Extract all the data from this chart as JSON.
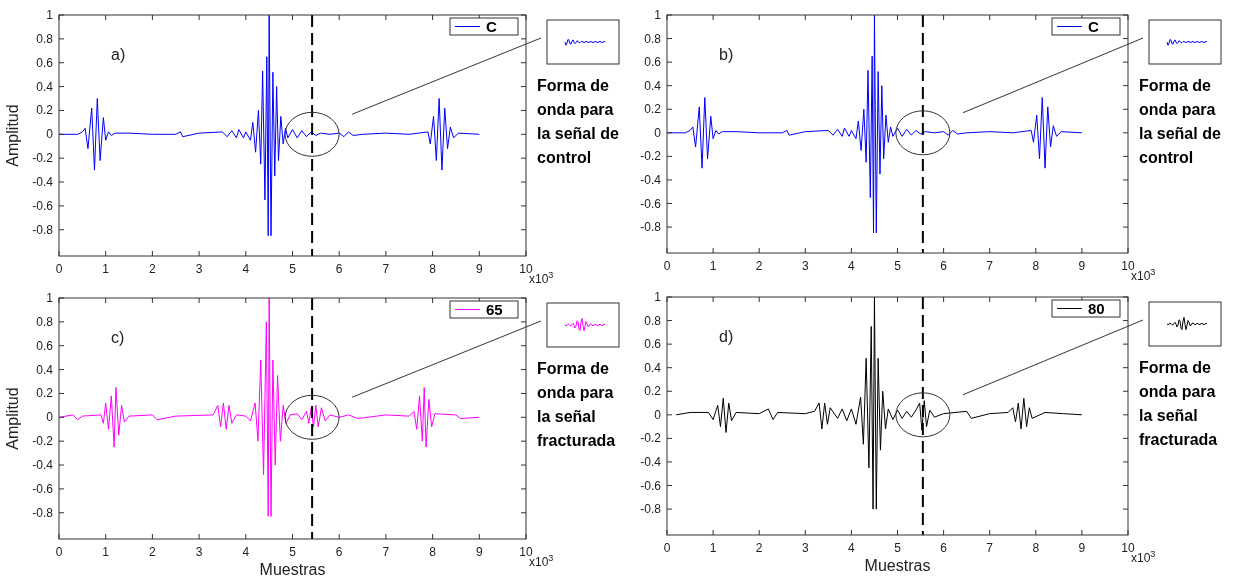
{
  "chart_data": [
    {
      "type": "line",
      "ylabel": "Amplitud",
      "legend": "top right",
      "xlim": [
        0,
        10
      ],
      "xticks": [
        0,
        1,
        2,
        3,
        4,
        5,
        6,
        7,
        8,
        9,
        10
      ],
      "ylim": [
        -1.02,
        1
      ],
      "yticks": [
        -0.8,
        -0.6,
        -0.4,
        -0.2,
        0,
        0.2,
        0.4,
        0.6,
        0.8,
        1
      ],
      "annotations": [
        "a)",
        "Forma de onda para la señal de control",
        "x10$^{3}$"
      ],
      "ref_lines": [
        {
          "axis": "x",
          "value": 5.42,
          "color": "#000000",
          "line_style": "dashed"
        }
      ],
      "x": [
        0,
        0.4,
        0.5,
        0.56,
        0.62,
        0.7,
        0.76,
        0.82,
        0.88,
        0.95,
        1.0,
        1.06,
        1.12,
        1.2,
        1.5,
        2.0,
        2.5,
        2.6,
        2.65,
        3.0,
        3.5,
        3.6,
        3.7,
        3.8,
        3.85,
        3.95,
        4.0,
        4.1,
        4.15,
        4.21,
        4.27,
        4.32,
        4.36,
        4.41,
        4.45,
        4.48,
        4.5,
        4.54,
        4.58,
        4.62,
        4.66,
        4.7,
        4.75,
        4.8,
        4.85,
        4.9,
        5.0,
        5.1,
        5.2,
        5.3,
        5.4,
        5.5,
        5.6,
        5.8,
        6.0,
        6.1,
        6.2,
        6.3,
        6.5,
        7.0,
        7.5,
        7.9,
        7.95,
        8.02,
        8.08,
        8.14,
        8.2,
        8.26,
        8.32,
        8.38,
        8.45,
        8.55,
        9.0
      ],
      "series": [
        {
          "name": "C",
          "color": "#0000ff",
          "values": [
            0,
            0,
            0.02,
            0.05,
            -0.12,
            0.22,
            -0.3,
            0.3,
            -0.22,
            0.14,
            -0.05,
            0.02,
            -0.01,
            0.01,
            0.01,
            0,
            0,
            0.02,
            -0.02,
            0.01,
            0.02,
            -0.02,
            0.03,
            -0.03,
            0.04,
            -0.03,
            0.02,
            -0.05,
            0.1,
            -0.15,
            0.2,
            -0.25,
            0.53,
            -0.55,
            0.65,
            -0.85,
            1.0,
            -0.85,
            0.52,
            -0.35,
            0.4,
            -0.22,
            0.15,
            -0.08,
            0.05,
            -0.03,
            0.04,
            -0.03,
            0.03,
            -0.02,
            0.02,
            -0.01,
            0.01,
            0,
            0.01,
            -0.02,
            0.02,
            -0.01,
            0,
            0.01,
            0,
            0.02,
            -0.08,
            0.15,
            -0.22,
            0.3,
            -0.3,
            0.22,
            -0.12,
            0.06,
            -0.03,
            0.01,
            0
          ]
        }
      ]
    },
    {
      "type": "line",
      "legend": "top right",
      "xlim": [
        0,
        10
      ],
      "xticks": [
        0,
        1,
        2,
        3,
        4,
        5,
        6,
        7,
        8,
        9,
        10
      ],
      "ylim": [
        -1.02,
        1
      ],
      "yticks": [
        -0.8,
        -0.6,
        -0.4,
        -0.2,
        0,
        0.2,
        0.4,
        0.6,
        0.8,
        1
      ],
      "annotations": [
        "b)",
        "Forma de onda para la señal de control",
        "x10$^{3}$"
      ],
      "ref_lines": [
        {
          "axis": "x",
          "value": 5.55,
          "color": "#000000",
          "line_style": "dashed"
        }
      ],
      "x": [
        0,
        0.4,
        0.5,
        0.56,
        0.62,
        0.7,
        0.76,
        0.82,
        0.88,
        0.95,
        1.0,
        1.06,
        1.12,
        1.2,
        1.5,
        2.0,
        2.5,
        2.6,
        2.65,
        3.0,
        3.5,
        3.6,
        3.7,
        3.8,
        3.85,
        3.95,
        4.0,
        4.1,
        4.15,
        4.21,
        4.27,
        4.32,
        4.36,
        4.41,
        4.45,
        4.48,
        4.5,
        4.54,
        4.58,
        4.62,
        4.66,
        4.7,
        4.75,
        4.8,
        4.85,
        4.9,
        5.0,
        5.1,
        5.2,
        5.3,
        5.4,
        5.5,
        5.6,
        5.8,
        6.0,
        6.1,
        6.2,
        6.3,
        6.5,
        7.0,
        7.5,
        7.9,
        7.95,
        8.02,
        8.08,
        8.14,
        8.2,
        8.26,
        8.32,
        8.38,
        8.45,
        8.55,
        9.0
      ],
      "series": [
        {
          "name": "C",
          "color": "#0000ff",
          "values": [
            0,
            0,
            0.02,
            0.05,
            -0.12,
            0.22,
            -0.3,
            0.3,
            -0.22,
            0.14,
            -0.05,
            0.02,
            -0.01,
            0.01,
            0.01,
            0,
            0,
            0.02,
            -0.02,
            0.01,
            0.02,
            -0.02,
            0.03,
            -0.03,
            0.04,
            -0.03,
            0.02,
            -0.05,
            0.1,
            -0.15,
            0.2,
            -0.25,
            0.53,
            -0.55,
            0.65,
            -0.85,
            1.0,
            -0.85,
            0.52,
            -0.35,
            0.4,
            -0.22,
            0.15,
            -0.08,
            0.05,
            -0.03,
            0.04,
            -0.03,
            0.03,
            -0.02,
            0.02,
            -0.01,
            0.01,
            0,
            0.01,
            -0.02,
            0.02,
            -0.01,
            0,
            0.01,
            0,
            0.02,
            -0.08,
            0.15,
            -0.22,
            0.3,
            -0.3,
            0.22,
            -0.12,
            0.06,
            -0.03,
            0.01,
            0
          ]
        }
      ]
    },
    {
      "type": "line",
      "ylabel": "Amplitud",
      "xlabel": "Muestras",
      "legend": "top right",
      "xlim": [
        0,
        10
      ],
      "xticks": [
        0,
        1,
        2,
        3,
        4,
        5,
        6,
        7,
        8,
        9,
        10
      ],
      "ylim": [
        -1.02,
        1
      ],
      "yticks": [
        -0.8,
        -0.6,
        -0.4,
        -0.2,
        0,
        0.2,
        0.4,
        0.6,
        0.8,
        1
      ],
      "annotations": [
        "c)",
        "Forma de onda para la señal fracturada",
        "x10$^{3}$"
      ],
      "ref_lines": [
        {
          "axis": "x",
          "value": 5.42,
          "color": "#000000",
          "line_style": "dashed"
        }
      ],
      "x": [
        0,
        0.3,
        0.4,
        0.5,
        0.9,
        0.95,
        1.0,
        1.06,
        1.12,
        1.18,
        1.22,
        1.28,
        1.34,
        1.4,
        1.5,
        2.0,
        2.1,
        2.5,
        3.3,
        3.4,
        3.46,
        3.52,
        3.58,
        3.64,
        3.7,
        3.8,
        4.0,
        4.1,
        4.2,
        4.26,
        4.32,
        4.38,
        4.44,
        4.48,
        4.5,
        4.54,
        4.58,
        4.63,
        4.68,
        4.74,
        4.8,
        4.86,
        4.95,
        5.1,
        5.2,
        5.3,
        5.35,
        5.4,
        5.45,
        5.5,
        5.55,
        5.62,
        5.7,
        5.8,
        6.0,
        6.2,
        6.4,
        7.0,
        7.5,
        7.6,
        7.66,
        7.72,
        7.78,
        7.82,
        7.86,
        7.92,
        7.98,
        8.05,
        8.5,
        8.6,
        9.0
      ],
      "series": [
        {
          "name": "65",
          "color": "#ff00ff",
          "values": [
            0,
            0.02,
            -0.02,
            0.01,
            0.02,
            -0.05,
            0.12,
            -0.1,
            0.18,
            -0.25,
            0.25,
            -0.15,
            0.1,
            -0.04,
            0.01,
            0.02,
            -0.02,
            0.01,
            0.02,
            0.1,
            -0.08,
            0.12,
            -0.1,
            0.1,
            -0.05,
            0.02,
            0.01,
            -0.03,
            0.12,
            -0.2,
            0.48,
            -0.48,
            0.8,
            -0.83,
            1.0,
            -0.83,
            0.48,
            -0.4,
            0.35,
            -0.2,
            0.1,
            -0.05,
            0.02,
            0.03,
            -0.02,
            0.05,
            -0.05,
            0.08,
            -0.08,
            0.1,
            -0.08,
            0.08,
            -0.03,
            0.02,
            0,
            0.02,
            -0.01,
            0.02,
            0.01,
            0.05,
            -0.1,
            0.18,
            -0.2,
            0.25,
            -0.25,
            0.15,
            -0.08,
            0.03,
            0.02,
            -0.01,
            0
          ]
        }
      ]
    },
    {
      "type": "line",
      "xlabel": "Muestras",
      "legend": "top right",
      "xlim": [
        0,
        10
      ],
      "xticks": [
        0,
        1,
        2,
        3,
        4,
        5,
        6,
        7,
        8,
        9,
        10
      ],
      "ylim": [
        -1.02,
        1
      ],
      "yticks": [
        -0.8,
        -0.6,
        -0.4,
        -0.2,
        0,
        0.2,
        0.4,
        0.6,
        0.8,
        1
      ],
      "annotations": [
        "d)",
        "Forma de onda para la señal fracturada",
        "x10$^{3}$"
      ],
      "ref_lines": [
        {
          "axis": "x",
          "value": 5.55,
          "color": "#000000",
          "line_style": "dashed"
        }
      ],
      "x": [
        0.2,
        0.5,
        0.9,
        1.0,
        1.1,
        1.16,
        1.22,
        1.28,
        1.34,
        1.4,
        1.5,
        2.0,
        2.2,
        2.3,
        2.4,
        3.0,
        3.2,
        3.3,
        3.36,
        3.42,
        3.48,
        3.54,
        3.7,
        3.8,
        3.9,
        4.0,
        4.1,
        4.2,
        4.26,
        4.32,
        4.38,
        4.43,
        4.47,
        4.5,
        4.54,
        4.58,
        4.63,
        4.68,
        4.74,
        4.8,
        4.9,
        5.0,
        5.1,
        5.2,
        5.3,
        5.4,
        5.48,
        5.53,
        5.58,
        5.63,
        5.7,
        5.8,
        6.0,
        6.5,
        6.6,
        7.0,
        7.4,
        7.5,
        7.56,
        7.62,
        7.68,
        7.74,
        7.8,
        7.86,
        7.92,
        8.2,
        8.6,
        9.0
      ],
      "series": [
        {
          "name": "80",
          "color": "#000000",
          "values": [
            0,
            0.02,
            0.02,
            -0.04,
            0.08,
            -0.1,
            0.14,
            -0.15,
            0.1,
            -0.05,
            0.02,
            0.01,
            0.05,
            -0.04,
            0.02,
            0.01,
            0.03,
            0.1,
            -0.12,
            0.1,
            -0.08,
            0.06,
            -0.03,
            0.05,
            -0.05,
            0.05,
            -0.08,
            0.15,
            -0.25,
            0.48,
            -0.45,
            0.75,
            -0.8,
            1.0,
            -0.8,
            0.48,
            -0.3,
            0.2,
            -0.12,
            0.05,
            -0.04,
            0.04,
            -0.03,
            0.03,
            -0.02,
            0.04,
            0.1,
            -0.13,
            0.12,
            -0.1,
            0.04,
            -0.02,
            0.01,
            0.03,
            -0.03,
            0.01,
            0.02,
            0.06,
            -0.06,
            0.1,
            -0.12,
            0.14,
            -0.1,
            0.06,
            -0.03,
            0.02,
            0.01,
            0
          ]
        }
      ]
    }
  ]
}
